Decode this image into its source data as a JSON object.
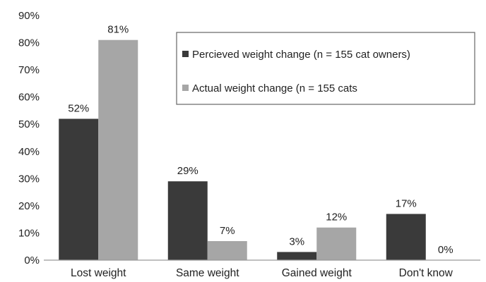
{
  "chart_data": {
    "type": "bar",
    "categories": [
      "Lost weight",
      "Same weight",
      "Gained weight",
      "Don't know"
    ],
    "series": [
      {
        "name": "Percieved weight change (n = 155 cat owners)",
        "values": [
          52,
          29,
          3,
          17
        ],
        "labels": [
          "52%",
          "29%",
          "3%",
          "17%"
        ],
        "color": "#3a3a3a"
      },
      {
        "name": "Actual weight change (n = 155 cats",
        "values": [
          81,
          7,
          12,
          0
        ],
        "labels": [
          "81%",
          "7%",
          "12%",
          "0%"
        ],
        "color": "#a6a6a6"
      }
    ],
    "y_ticks": [
      "0%",
      "10%",
      "20%",
      "30%",
      "40%",
      "50%",
      "60%",
      "70%",
      "80%",
      "90%"
    ],
    "ylim": [
      0,
      90
    ],
    "grid": false,
    "legend_position": "top-right",
    "title": "",
    "xlabel": "",
    "ylabel": ""
  }
}
